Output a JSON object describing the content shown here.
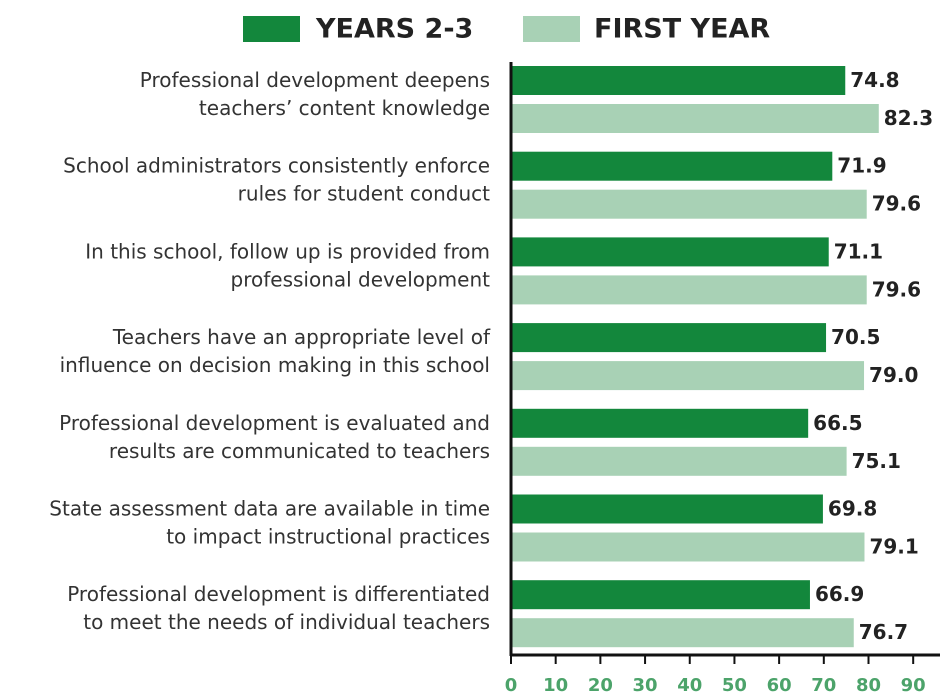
{
  "chart_data": {
    "type": "bar",
    "orientation": "horizontal",
    "categories": [
      [
        "Professional development deepens",
        "teachers’ content knowledge"
      ],
      [
        "School administrators consistently enforce",
        "rules for student conduct"
      ],
      [
        "In this school, follow up is provided from",
        "professional development"
      ],
      [
        "Teachers have an appropriate level of",
        "influence on decision making in this school"
      ],
      [
        "Professional development is evaluated and",
        "results are communicated to teachers"
      ],
      [
        "State assessment data are available in time",
        "to impact instructional practices"
      ],
      [
        "Professional development is differentiated",
        "to meet the needs of individual teachers"
      ]
    ],
    "series": [
      {
        "name": "YEARS 2-3",
        "color": "#13873c",
        "values": [
          74.8,
          71.9,
          71.1,
          70.5,
          66.5,
          69.8,
          66.9
        ]
      },
      {
        "name": "FIRST YEAR",
        "color": "#a8d1b5",
        "values": [
          82.3,
          79.6,
          79.6,
          79,
          75.1,
          79.1,
          76.7
        ],
        "value_labels": [
          "82.3",
          "79.6",
          "79.6",
          "79.0",
          "75.1",
          "79.1",
          "76.7"
        ]
      }
    ],
    "xlim": [
      0,
      96
    ],
    "xticks": [
      0,
      10,
      20,
      30,
      40,
      50,
      60,
      70,
      80,
      90
    ],
    "legend": "top"
  }
}
